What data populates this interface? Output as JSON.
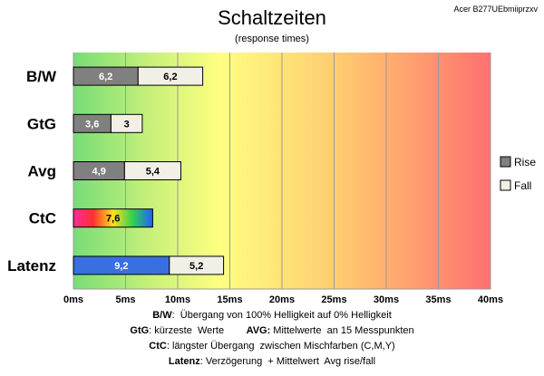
{
  "header": {
    "title": "Schaltzeiten",
    "subtitle": "(response times)",
    "model": "Acer B277UEbmiiprzxv"
  },
  "chart_data": {
    "type": "bar",
    "orientation": "horizontal",
    "stacked": true,
    "title": "Schaltzeiten",
    "subtitle": "(response times)",
    "categories": [
      "B/W",
      "GtG",
      "Avg",
      "CtC",
      "Latenz"
    ],
    "series": [
      {
        "name": "Rise",
        "values": [
          6.2,
          3.6,
          4.9,
          7.6,
          9.2
        ],
        "labels": [
          "6,2",
          "3,6",
          "4,9",
          "7,6",
          "9,2"
        ],
        "color": "#808080"
      },
      {
        "name": "Fall",
        "values": [
          6.2,
          3.0,
          5.4,
          0,
          5.2
        ],
        "labels": [
          "6,2",
          "3",
          "5,4",
          "",
          "5,2"
        ],
        "color": "#f2f0e6"
      }
    ],
    "special_colors": {
      "CtC": "rainbow",
      "Latenz": "#3a6fe0"
    },
    "xlim": [
      0,
      40
    ],
    "x_ticks": [
      0,
      5,
      10,
      15,
      20,
      25,
      30,
      35,
      40
    ],
    "x_tick_labels": [
      "0ms",
      "5ms",
      "10ms",
      "15ms",
      "20ms",
      "25ms",
      "30ms",
      "35ms",
      "40ms"
    ],
    "background_gradient": [
      "#77dd77",
      "#ffff80",
      "#ff7070"
    ],
    "grid": true,
    "legend": {
      "position": "right",
      "entries": [
        "Rise",
        "Fall"
      ]
    }
  },
  "notes": [
    {
      "parts": [
        {
          "bold": "B/W"
        },
        {
          "text": ":  Übergang von 100% Helligkeit auf 0% Helligkeit"
        }
      ]
    },
    {
      "parts": [
        {
          "bold": "GtG"
        },
        {
          "text": ": kürzeste  Werte        "
        },
        {
          "bold": "AVG:"
        },
        {
          "text": " Mittelwerte  an 15 Messpunkten"
        }
      ]
    },
    {
      "parts": [
        {
          "bold": "CtC"
        },
        {
          "text": ": längster Übergang  zwischen Mischfarben (C,M,Y)"
        }
      ]
    },
    {
      "parts": [
        {
          "bold": "Latenz"
        },
        {
          "text": ": Verzögerung  + Mittelwert  Avg rise/fall"
        }
      ]
    }
  ]
}
